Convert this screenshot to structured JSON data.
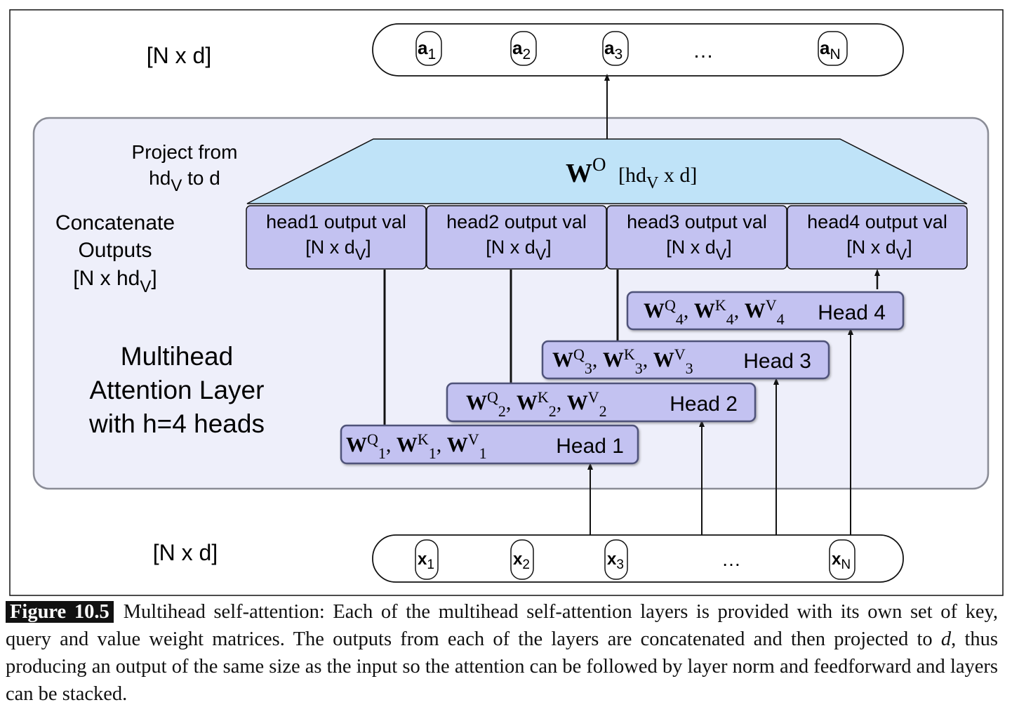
{
  "figure": {
    "output_label": "[N x d]",
    "input_label": "[N x d]",
    "outputs": {
      "tokens": [
        {
          "base": "a",
          "sub": "1"
        },
        {
          "base": "a",
          "sub": "2"
        },
        {
          "base": "a",
          "sub": "3"
        },
        {
          "base": "a",
          "sub": "N"
        }
      ],
      "ellipsis": "…"
    },
    "inputs": {
      "tokens": [
        {
          "base": "x",
          "sub": "1"
        },
        {
          "base": "x",
          "sub": "2"
        },
        {
          "base": "x",
          "sub": "3"
        },
        {
          "base": "x",
          "sub": "N"
        }
      ],
      "ellipsis": "…"
    },
    "projection": {
      "label_line1": "Project from",
      "label_line2_pre": "hd",
      "label_line2_sub": "V",
      "label_line2_post": " to d",
      "matrix": "W",
      "matrix_sup": "O",
      "dims_pre": "[hd",
      "dims_sub": "V",
      "dims_post": " x d]"
    },
    "concat": {
      "line1": "Concatenate",
      "line2": "Outputs",
      "line3_pre": "[N x hd",
      "line3_sub": "V",
      "line3_post": "]"
    },
    "head_outputs": [
      {
        "title": "head1 output val",
        "dims_pre": "[N x d",
        "dims_sub": "V",
        "dims_post": "]"
      },
      {
        "title": "head2 output val",
        "dims_pre": "[N x d",
        "dims_sub": "V",
        "dims_post": "]"
      },
      {
        "title": "head3 output val",
        "dims_pre": "[N x d",
        "dims_sub": "V",
        "dims_post": "]"
      },
      {
        "title": "head4 output val",
        "dims_pre": "[N x d",
        "dims_sub": "V",
        "dims_post": "]"
      }
    ],
    "heads": [
      {
        "name": "Head 1",
        "index": "1"
      },
      {
        "name": "Head 2",
        "index": "2"
      },
      {
        "name": "Head 3",
        "index": "3"
      },
      {
        "name": "Head 4",
        "index": "4"
      }
    ],
    "weights": {
      "w": "W",
      "q": "Q",
      "k": "K",
      "v": "V"
    },
    "layer_title": [
      "Multihead",
      "Attention Layer",
      "with h=4 heads"
    ]
  },
  "caption": {
    "label": "Figure 10.5",
    "text_before_d": "Multihead self-attention: Each of the multihead self-attention layers is provided with its own set of key, query and value weight matrices.  The outputs from each of the layers are concatenated and then projected to ",
    "d": "d",
    "text_after_d": ", thus producing an output of the same size as the input so the attention can be followed by layer norm and feedforward and layers can be stacked."
  },
  "colors": {
    "outer_panel": "#eeeffa",
    "panel_border": "#8a8c96",
    "projection_fill": "#bfe3f8",
    "head_fill": "#c3c2f1",
    "head_border": "#50527a",
    "line": "#111111"
  }
}
